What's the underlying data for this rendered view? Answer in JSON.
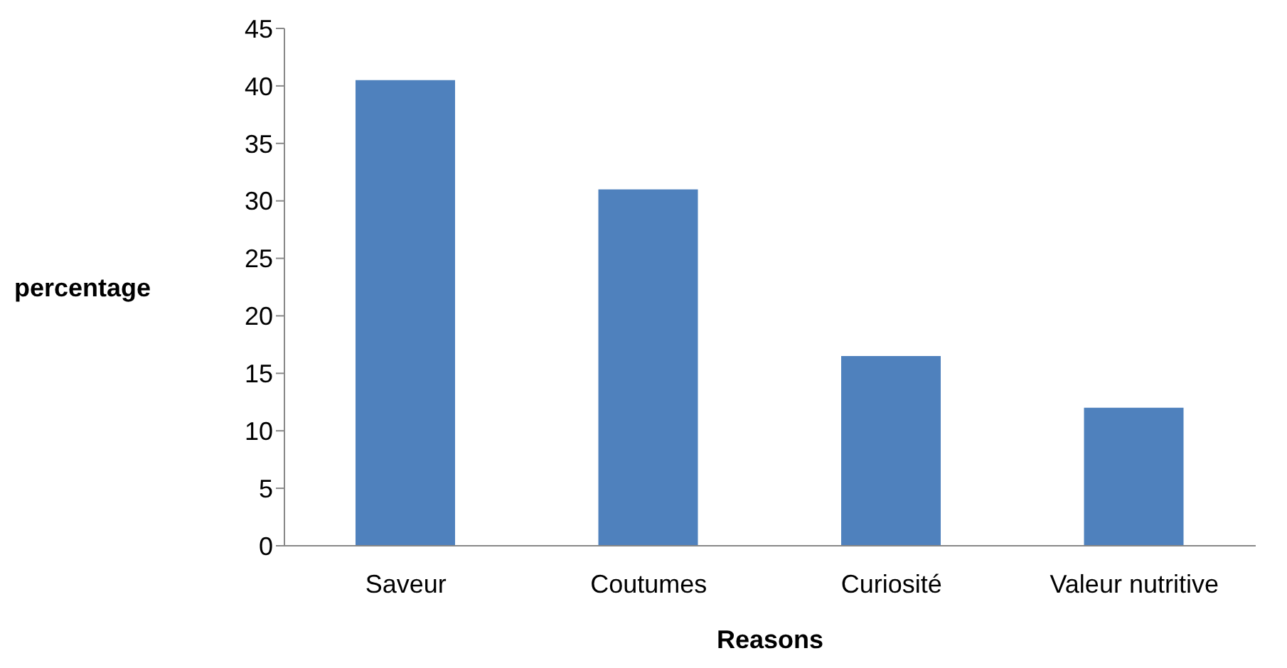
{
  "chart_data": {
    "type": "bar",
    "xlabel": "Reasons",
    "ylabel": "percentage",
    "categories": [
      "Saveur",
      "Coutumes",
      "Curiosité",
      "Valeur nutritive"
    ],
    "values": [
      40.5,
      31,
      16.5,
      12
    ],
    "color": "#4f81bd",
    "ylim": [
      0,
      45
    ],
    "yticks": [
      0,
      5,
      10,
      15,
      20,
      25,
      30,
      35,
      40,
      45
    ],
    "grid": false
  }
}
